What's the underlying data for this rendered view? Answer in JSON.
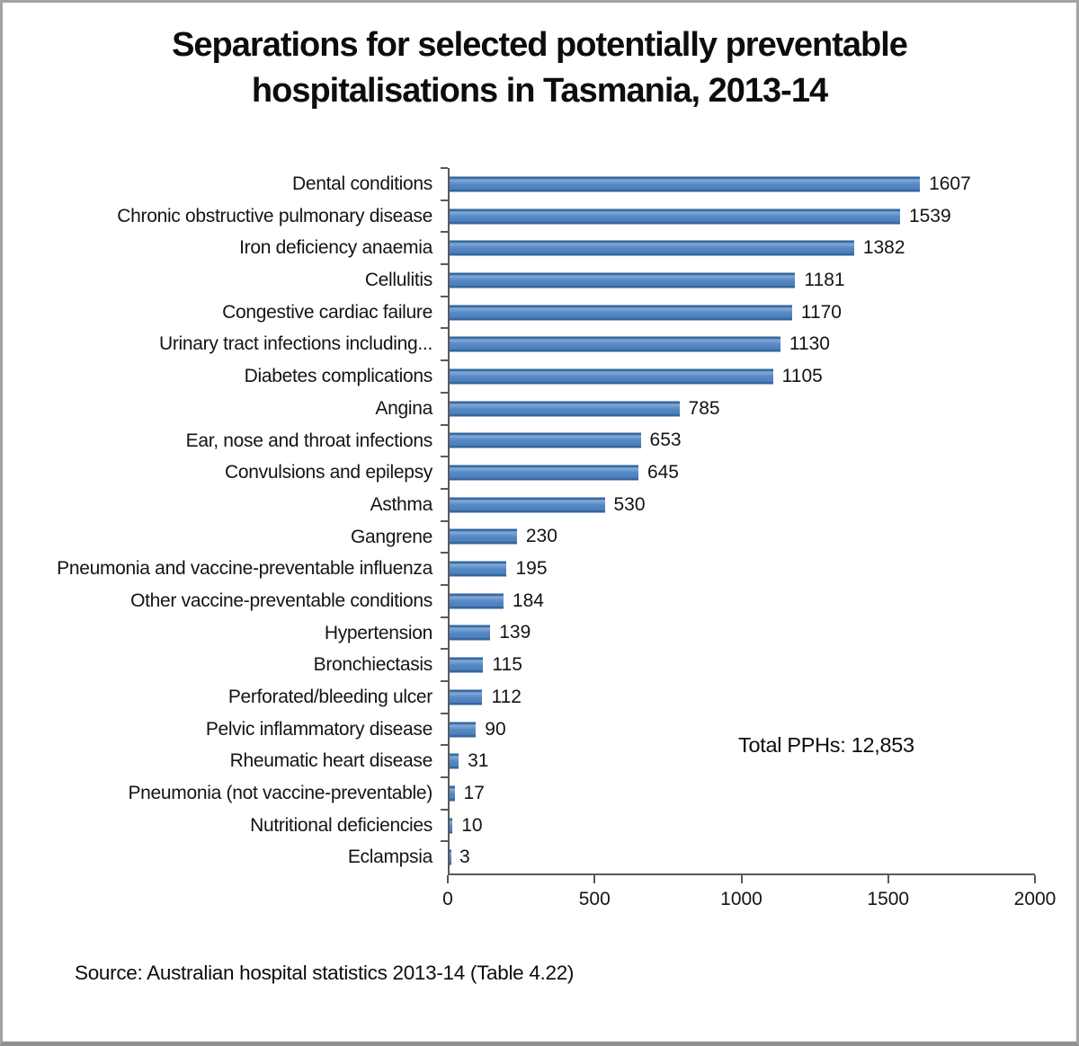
{
  "page": {
    "title_line1": "Separations for selected potentially preventable",
    "title_line2": "hospitalisations in Tasmania, 2013-14",
    "source": "Source: Australian hospital statistics 2013-14 (Table 4.22)"
  },
  "chart_data": {
    "type": "bar",
    "orientation": "horizontal",
    "title": "Separations for selected potentially preventable hospitalisations in Tasmania, 2013-14",
    "categories": [
      "Dental conditions",
      "Chronic obstructive pulmonary disease",
      "Iron deficiency anaemia",
      "Cellulitis",
      "Congestive cardiac failure",
      "Urinary tract infections including...",
      "Diabetes complications",
      "Angina",
      "Ear, nose and throat infections",
      "Convulsions and epilepsy",
      "Asthma",
      "Gangrene",
      "Pneumonia and vaccine-preventable influenza",
      "Other vaccine-preventable conditions",
      "Hypertension",
      "Bronchiectasis",
      "Perforated/bleeding ulcer",
      "Pelvic inflammatory disease",
      "Rheumatic heart disease",
      "Pneumonia (not vaccine-preventable)",
      "Nutritional deficiencies",
      "Eclampsia"
    ],
    "values": [
      1607,
      1539,
      1382,
      1181,
      1170,
      1130,
      1105,
      785,
      653,
      645,
      530,
      230,
      195,
      184,
      139,
      115,
      112,
      90,
      31,
      17,
      10,
      3
    ],
    "xlim": [
      0,
      2000
    ],
    "x_ticks": [
      0,
      500,
      1000,
      1500,
      2000
    ],
    "annotation": "Total PPHs: 12,853",
    "bar_color": "#4f81bd",
    "axis_color": "#595959",
    "grid": false,
    "legend": false,
    "xlabel": "",
    "ylabel": ""
  }
}
